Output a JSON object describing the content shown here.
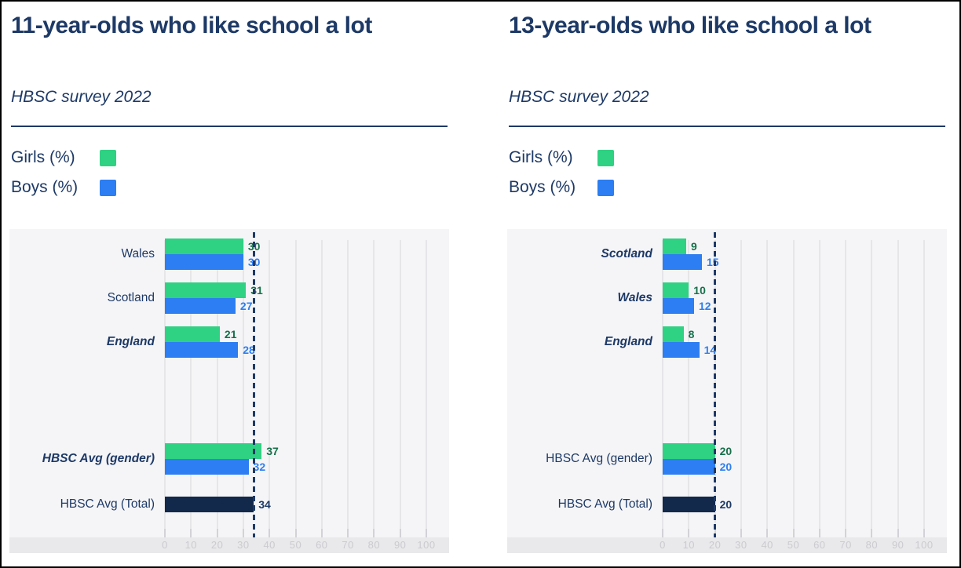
{
  "page": {
    "background": "#ffffff",
    "frame_color": "#000000"
  },
  "colors": {
    "navy_text": "#1d3966",
    "green_bar": "#2fd183",
    "green_label": "#15704a",
    "blue_bar": "#2c7ef2",
    "blue_label": "#2c7ef2",
    "total_bar": "#12294c",
    "total_label": "#1d3966",
    "card_bg": "#f5f5f7",
    "axis_strip_bg": "#e9e9eb",
    "gridline": "#e6e6e9",
    "tick_mark": "#d2d2d7",
    "tick_label": "#cbcbd0",
    "reference_line": "#1d3966"
  },
  "chart_data": [
    {
      "type": "bar",
      "orientation": "horizontal",
      "title": "11-year-olds who like school a lot",
      "subtitle": "HBSC survey 2022",
      "legend": [
        {
          "label": "Girls (%)",
          "color": "#2fd183"
        },
        {
          "label": "Boys (%)",
          "color": "#2c7ef2"
        }
      ],
      "categories": [
        "Wales",
        "Scotland",
        "England",
        "HBSC Avg (gender)",
        "HBSC Avg (Total)"
      ],
      "emphasized_categories": [
        "England",
        "HBSC Avg (gender)"
      ],
      "series": [
        {
          "name": "Girls (%)",
          "color": "#2fd183",
          "label_color": "#15704a",
          "values": [
            30,
            31,
            21,
            37,
            null
          ]
        },
        {
          "name": "Boys (%)",
          "color": "#2c7ef2",
          "label_color": "#2c7ef2",
          "values": [
            30,
            27,
            28,
            32,
            null
          ]
        },
        {
          "name": "Total",
          "color": "#12294c",
          "label_color": "#1d3966",
          "values": [
            null,
            null,
            null,
            null,
            34
          ]
        }
      ],
      "reference_line_value": 34,
      "xlim": [
        0,
        100
      ],
      "x_ticks": [
        0,
        10,
        20,
        30,
        40,
        50,
        60,
        70,
        80,
        90,
        100
      ],
      "grid": true,
      "legend_position": "above-chart"
    },
    {
      "type": "bar",
      "orientation": "horizontal",
      "title": "13-year-olds who like school a lot",
      "subtitle": "HBSC survey 2022",
      "legend": [
        {
          "label": "Girls (%)",
          "color": "#2fd183"
        },
        {
          "label": "Boys (%)",
          "color": "#2c7ef2"
        }
      ],
      "categories": [
        "Scotland",
        "Wales",
        "England",
        "HBSC Avg (gender)",
        "HBSC Avg (Total)"
      ],
      "emphasized_categories": [
        "Scotland",
        "Wales",
        "England"
      ],
      "series": [
        {
          "name": "Girls (%)",
          "color": "#2fd183",
          "label_color": "#15704a",
          "values": [
            9,
            10,
            8,
            20,
            null
          ]
        },
        {
          "name": "Boys (%)",
          "color": "#2c7ef2",
          "label_color": "#2c7ef2",
          "values": [
            15,
            12,
            14,
            20,
            null
          ]
        },
        {
          "name": "Total",
          "color": "#12294c",
          "label_color": "#1d3966",
          "values": [
            null,
            null,
            null,
            null,
            20
          ]
        }
      ],
      "reference_line_value": 20,
      "xlim": [
        0,
        100
      ],
      "x_ticks": [
        0,
        10,
        20,
        30,
        40,
        50,
        60,
        70,
        80,
        90,
        100
      ],
      "grid": true,
      "legend_position": "above-chart"
    }
  ]
}
